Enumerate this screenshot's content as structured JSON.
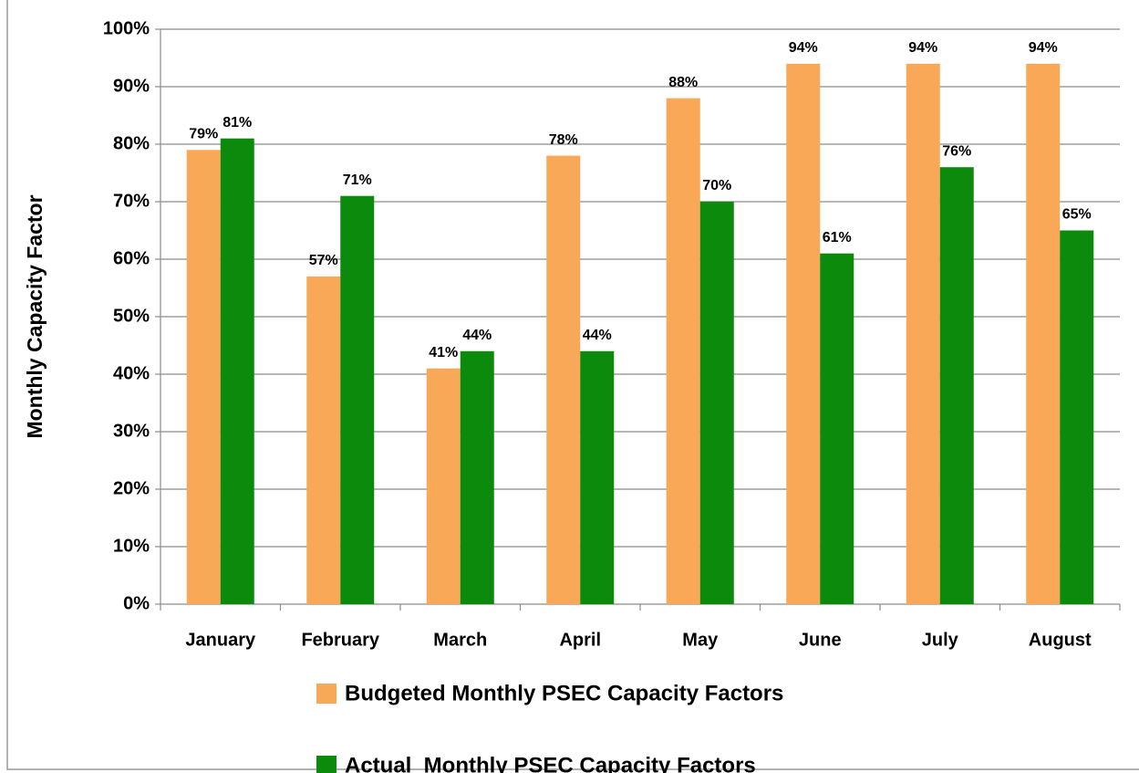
{
  "chart_data": {
    "type": "bar",
    "y_label": "Monthly Capacity Factor",
    "categories": [
      "January",
      "February",
      "March",
      "April",
      "May",
      "June",
      "July",
      "August"
    ],
    "series": [
      {
        "name": "Budgeted Monthly PSEC Capacity Factors",
        "color": "#f9a857",
        "values": [
          79,
          57,
          41,
          78,
          88,
          94,
          94,
          94
        ],
        "value_labels": [
          "79%",
          "57%",
          "41%",
          "78%",
          "88%",
          "94%",
          "94%",
          "94%"
        ]
      },
      {
        "name": "Actual  Monthly PSEC Capacity Factors",
        "color": "#0b8a0b",
        "values": [
          81,
          71,
          44,
          44,
          70,
          61,
          76,
          65
        ],
        "value_labels": [
          "81%",
          "71%",
          "44%",
          "44%",
          "70%",
          "61%",
          "76%",
          "65%"
        ]
      }
    ],
    "ylim": [
      0,
      100
    ],
    "yticks": [
      {
        "value": 0,
        "label": "0%"
      },
      {
        "value": 10,
        "label": "10%"
      },
      {
        "value": 20,
        "label": "20%"
      },
      {
        "value": 30,
        "label": "30%"
      },
      {
        "value": 40,
        "label": "40%"
      },
      {
        "value": 50,
        "label": "50%"
      },
      {
        "value": 60,
        "label": "60%"
      },
      {
        "value": 70,
        "label": "70%"
      },
      {
        "value": 80,
        "label": "80%"
      },
      {
        "value": 90,
        "label": "90%"
      },
      {
        "value": 100,
        "label": "100%"
      }
    ],
    "grid": true,
    "legend": "bottom"
  }
}
